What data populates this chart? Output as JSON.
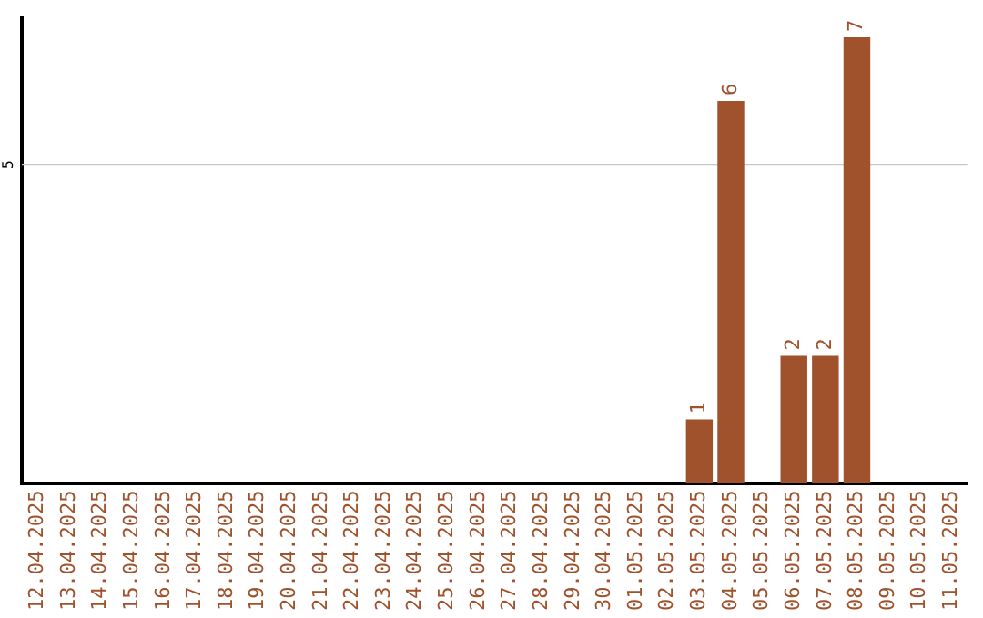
{
  "chart_data": {
    "type": "bar",
    "categories": [
      "12.04.2025",
      "13.04.2025",
      "14.04.2025",
      "15.04.2025",
      "16.04.2025",
      "17.04.2025",
      "18.04.2025",
      "19.04.2025",
      "20.04.2025",
      "21.04.2025",
      "22.04.2025",
      "23.04.2025",
      "24.04.2025",
      "25.04.2025",
      "26.04.2025",
      "27.04.2025",
      "28.04.2025",
      "29.04.2025",
      "30.04.2025",
      "01.05.2025",
      "02.05.2025",
      "03.05.2025",
      "04.05.2025",
      "05.05.2025",
      "06.05.2025",
      "07.05.2025",
      "08.05.2025",
      "09.05.2025",
      "10.05.2025",
      "11.05.2025"
    ],
    "values": [
      null,
      null,
      null,
      null,
      null,
      null,
      null,
      null,
      null,
      null,
      null,
      null,
      null,
      null,
      null,
      null,
      null,
      null,
      null,
      null,
      null,
      1,
      6,
      null,
      2,
      2,
      7,
      null,
      null,
      null
    ],
    "data_labels": true,
    "color": "#a0522d",
    "ylim": [
      0,
      7.3
    ],
    "ref_lines": [
      {
        "axis": "y",
        "value": 5,
        "label": "5",
        "color": "#c8c8c8"
      }
    ],
    "legend": false
  }
}
